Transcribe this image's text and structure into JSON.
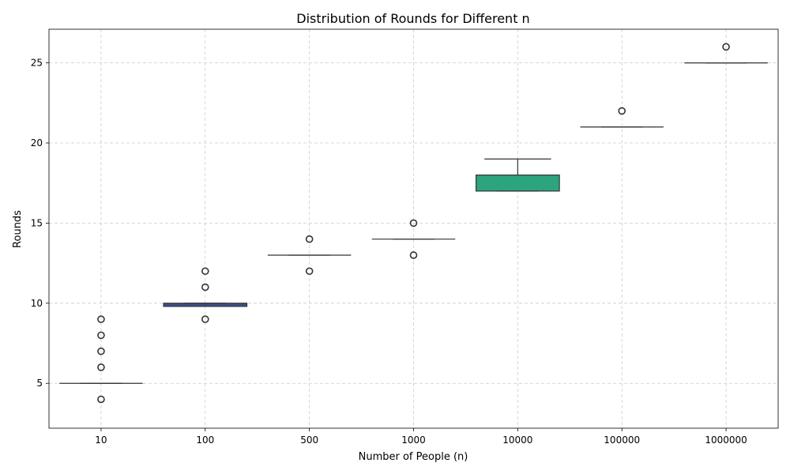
{
  "chart_data": {
    "type": "box",
    "title": "Distribution of Rounds for Different n",
    "xlabel": "Number of People (n)",
    "ylabel": "Rounds",
    "categories": [
      "10",
      "100",
      "500",
      "1000",
      "10000",
      "100000",
      "1000000"
    ],
    "ylim": [
      2.2,
      27.1
    ],
    "yticks": [
      5,
      10,
      15,
      20,
      25
    ],
    "grid": true,
    "boxes": [
      {
        "category": "10",
        "q1": 5,
        "median": 5,
        "q3": 5,
        "whisker_low": 5,
        "whisker_high": 5,
        "outliers": [
          4,
          6,
          7,
          8,
          9
        ],
        "color": "#3b4f8a"
      },
      {
        "category": "100",
        "q1": 9.8,
        "median": 10,
        "q3": 10,
        "whisker_low": 9.8,
        "whisker_high": 10,
        "outliers": [
          9,
          11,
          12
        ],
        "color": "#3b4f8a"
      },
      {
        "category": "500",
        "q1": 13,
        "median": 13,
        "q3": 13,
        "whisker_low": 13,
        "whisker_high": 13,
        "outliers": [
          12,
          14
        ],
        "color": "#3b4f8a"
      },
      {
        "category": "1000",
        "q1": 14,
        "median": 14,
        "q3": 14,
        "whisker_low": 14,
        "whisker_high": 14,
        "outliers": [
          13,
          15
        ],
        "color": "#3b4f8a"
      },
      {
        "category": "10000",
        "q1": 17,
        "median": 17,
        "q3": 18,
        "whisker_low": 17,
        "whisker_high": 19,
        "outliers": [],
        "color": "#2ca57e"
      },
      {
        "category": "100000",
        "q1": 21,
        "median": 21,
        "q3": 21,
        "whisker_low": 21,
        "whisker_high": 21,
        "outliers": [
          22
        ],
        "color": "#5ec962"
      },
      {
        "category": "1000000",
        "q1": 25,
        "median": 25,
        "q3": 25,
        "whisker_low": 25,
        "whisker_high": 25,
        "outliers": [
          26
        ],
        "color": "#a0da39"
      }
    ],
    "colors": {
      "grid": "#cccccc",
      "line": "#333333",
      "frame": "#000000"
    }
  }
}
